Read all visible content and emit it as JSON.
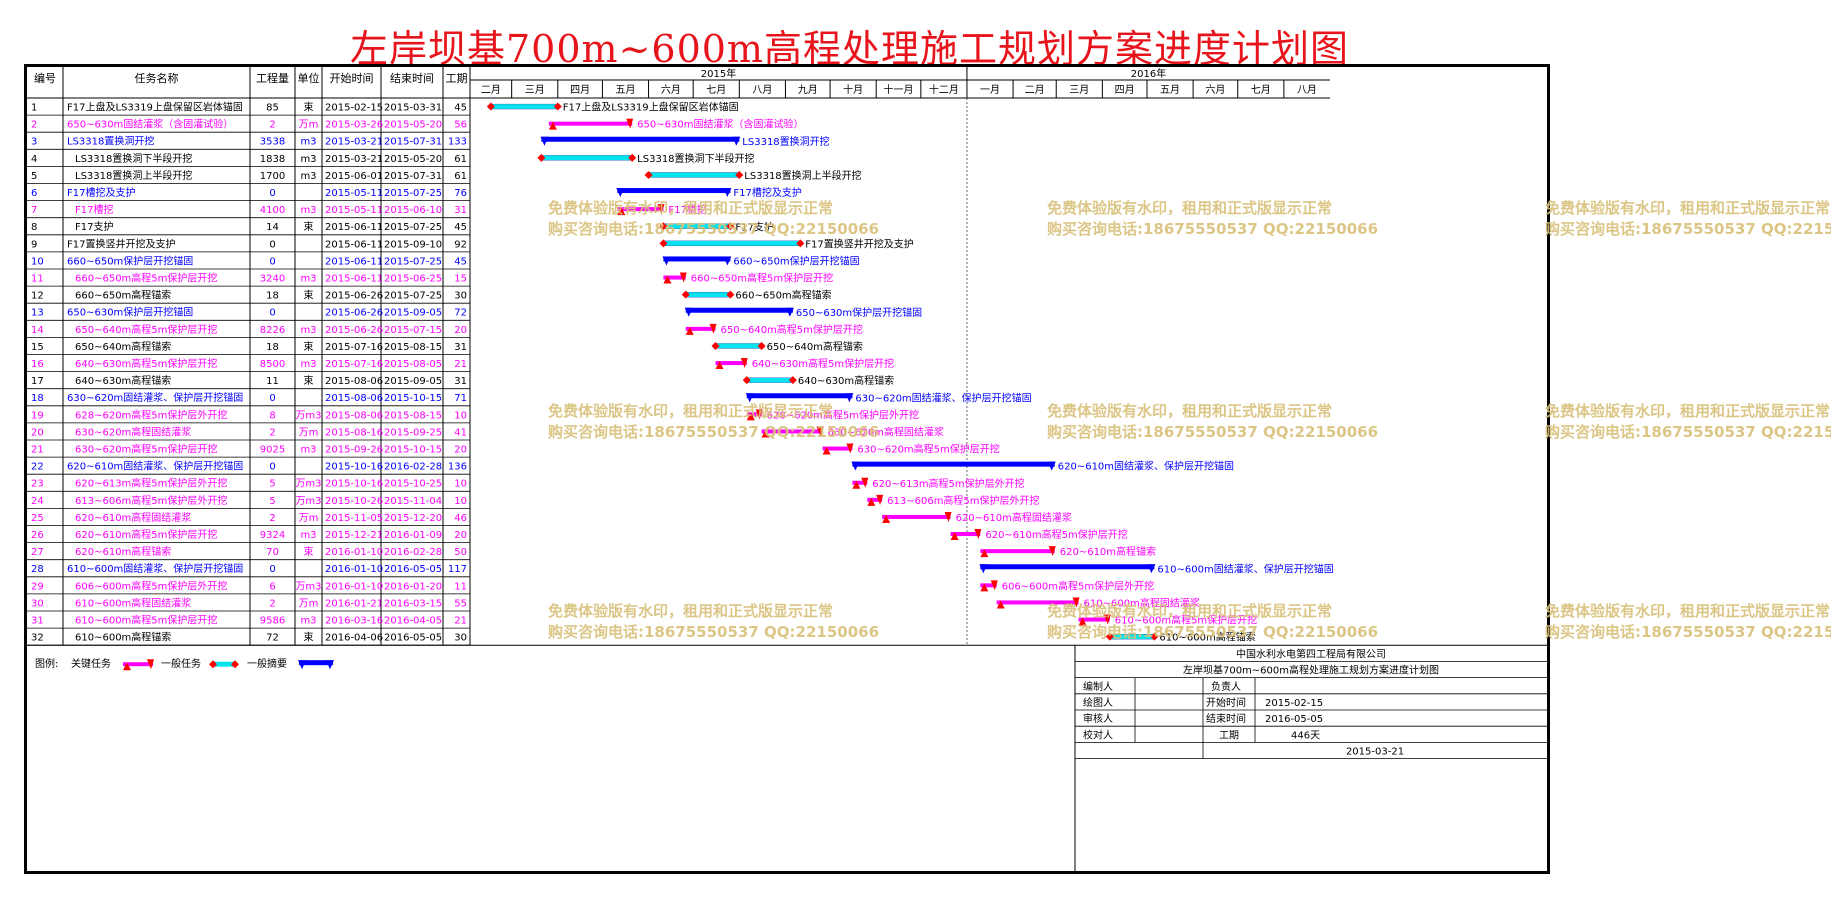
{
  "title": "左岸坝基700m~600m高程处理施工规划方案进度计划图",
  "headers": {
    "id": "编号",
    "name": "任务名称",
    "qty": "工程量",
    "unit": "单位",
    "start": "开始时间",
    "end": "结束时间",
    "dur": "工期"
  },
  "years": [
    "2015年",
    "2016年"
  ],
  "months_2015": [
    "二月",
    "三月",
    "四月",
    "五月",
    "六月",
    "七月",
    "八月",
    "九月",
    "十月",
    "十一月",
    "十二月"
  ],
  "months_2016": [
    "一月",
    "二月",
    "三月",
    "四月",
    "五月",
    "六月",
    "七月",
    "八月"
  ],
  "legend": {
    "label": "图例:",
    "critical": "关键任务",
    "normal": "一般任务",
    "summary": "一般摘要"
  },
  "watermark": {
    "line1": "免费体验版有水印，租用和正式版显示正常",
    "line2": "购买咨询电话:18675550537 QQ:22150066"
  },
  "titleblock": {
    "company": "中国水利水电第四工程局有限公司",
    "plan_title": "左岸坝基700m~600m高程处理施工规划方案进度计划图",
    "compiler": "编制人",
    "owner": "负责人",
    "drafter": "绘图人",
    "start_label": "开始时间",
    "start_value": "2015-02-15",
    "reviewer": "审核人",
    "end_label": "结束时间",
    "end_value": "2016-05-05",
    "checker": "校对人",
    "dur_label": "工期",
    "dur_value": "446天",
    "date": "2015-03-21"
  },
  "colors": {
    "critical": "#ff00ff",
    "normal": "#00e5ee",
    "summary": "#0000ff",
    "milestone": "#ff0000",
    "watermark": "#d9c07a",
    "title": "#e8141b"
  },
  "chart_data": {
    "type": "gantt",
    "x_start": "2015-02-01",
    "x_end": "2016-08-31",
    "tasks": [
      {
        "id": "1",
        "name": "F17上盘及LS3319上盘保留区岩体锚固",
        "qty": "85",
        "unit": "束",
        "start": "2015-02-15",
        "end": "2015-03-31",
        "dur": "45",
        "type": "normal",
        "indent": 0
      },
      {
        "id": "2",
        "name": "650~630m固结灌浆（含固灌试验）",
        "qty": "2",
        "unit": "万m",
        "start": "2015-03-26",
        "end": "2015-05-20",
        "dur": "56",
        "type": "critical",
        "indent": 0
      },
      {
        "id": "3",
        "name": "LS3318置换洞开挖",
        "qty": "3538",
        "unit": "m3",
        "start": "2015-03-21",
        "end": "2015-07-31",
        "dur": "133",
        "type": "summary",
        "indent": 0
      },
      {
        "id": "4",
        "name": "LS3318置换洞下半段开挖",
        "qty": "1838",
        "unit": "m3",
        "start": "2015-03-21",
        "end": "2015-05-20",
        "dur": "61",
        "type": "normal",
        "indent": 1
      },
      {
        "id": "5",
        "name": "LS3318置换洞上半段开挖",
        "qty": "1700",
        "unit": "m3",
        "start": "2015-06-01",
        "end": "2015-07-31",
        "dur": "61",
        "type": "normal",
        "indent": 1
      },
      {
        "id": "6",
        "name": "F17槽挖及支护",
        "qty": "0",
        "unit": "",
        "start": "2015-05-11",
        "end": "2015-07-25",
        "dur": "76",
        "type": "summary",
        "indent": 0
      },
      {
        "id": "7",
        "name": "F17槽挖",
        "qty": "4100",
        "unit": "m3",
        "start": "2015-05-11",
        "end": "2015-06-10",
        "dur": "31",
        "type": "critical",
        "indent": 1
      },
      {
        "id": "8",
        "name": "F17支护",
        "qty": "14",
        "unit": "束",
        "start": "2015-06-11",
        "end": "2015-07-25",
        "dur": "45",
        "type": "normal",
        "indent": 1
      },
      {
        "id": "9",
        "name": "F17置换竖井开挖及支护",
        "qty": "0",
        "unit": "",
        "start": "2015-06-11",
        "end": "2015-09-10",
        "dur": "92",
        "type": "normal",
        "indent": 0
      },
      {
        "id": "10",
        "name": "660~650m保护层开挖锚固",
        "qty": "0",
        "unit": "",
        "start": "2015-06-11",
        "end": "2015-07-25",
        "dur": "45",
        "type": "summary",
        "indent": 0
      },
      {
        "id": "11",
        "name": "660~650m高程5m保护层开挖",
        "qty": "3240",
        "unit": "m3",
        "start": "2015-06-11",
        "end": "2015-06-25",
        "dur": "15",
        "type": "critical",
        "indent": 1
      },
      {
        "id": "12",
        "name": "660~650m高程锚索",
        "qty": "18",
        "unit": "束",
        "start": "2015-06-26",
        "end": "2015-07-25",
        "dur": "30",
        "type": "normal",
        "indent": 1
      },
      {
        "id": "13",
        "name": "650~630m保护层开挖锚固",
        "qty": "0",
        "unit": "",
        "start": "2015-06-26",
        "end": "2015-09-05",
        "dur": "72",
        "type": "summary",
        "indent": 0
      },
      {
        "id": "14",
        "name": "650~640m高程5m保护层开挖",
        "qty": "8226",
        "unit": "m3",
        "start": "2015-06-26",
        "end": "2015-07-15",
        "dur": "20",
        "type": "critical",
        "indent": 1
      },
      {
        "id": "15",
        "name": "650~640m高程锚索",
        "qty": "18",
        "unit": "束",
        "start": "2015-07-16",
        "end": "2015-08-15",
        "dur": "31",
        "type": "normal",
        "indent": 1
      },
      {
        "id": "16",
        "name": "640~630m高程5m保护层开挖",
        "qty": "8500",
        "unit": "m3",
        "start": "2015-07-16",
        "end": "2015-08-05",
        "dur": "21",
        "type": "critical",
        "indent": 1
      },
      {
        "id": "17",
        "name": "640~630m高程锚索",
        "qty": "11",
        "unit": "束",
        "start": "2015-08-06",
        "end": "2015-09-05",
        "dur": "31",
        "type": "normal",
        "indent": 1
      },
      {
        "id": "18",
        "name": "630~620m固结灌浆、保护层开挖锚固",
        "qty": "0",
        "unit": "",
        "start": "2015-08-06",
        "end": "2015-10-15",
        "dur": "71",
        "type": "summary",
        "indent": 0
      },
      {
        "id": "19",
        "name": "628~620m高程5m保护层外开挖",
        "qty": "8",
        "unit": "万m3",
        "start": "2015-08-06",
        "end": "2015-08-15",
        "dur": "10",
        "type": "critical",
        "indent": 1
      },
      {
        "id": "20",
        "name": "630~620m高程固结灌浆",
        "qty": "2",
        "unit": "万m",
        "start": "2015-08-16",
        "end": "2015-09-25",
        "dur": "41",
        "type": "critical",
        "indent": 1
      },
      {
        "id": "21",
        "name": "630~620m高程5m保护层开挖",
        "qty": "9025",
        "unit": "m3",
        "start": "2015-09-26",
        "end": "2015-10-15",
        "dur": "20",
        "type": "critical",
        "indent": 1
      },
      {
        "id": "22",
        "name": "620~610m固结灌浆、保护层开挖锚固",
        "qty": "0",
        "unit": "",
        "start": "2015-10-16",
        "end": "2016-02-28",
        "dur": "136",
        "type": "summary",
        "indent": 0
      },
      {
        "id": "23",
        "name": "620~613m高程5m保护层外开挖",
        "qty": "5",
        "unit": "万m3",
        "start": "2015-10-16",
        "end": "2015-10-25",
        "dur": "10",
        "type": "critical",
        "indent": 1
      },
      {
        "id": "24",
        "name": "613~606m高程5m保护层外开挖",
        "qty": "5",
        "unit": "万m3",
        "start": "2015-10-26",
        "end": "2015-11-04",
        "dur": "10",
        "type": "critical",
        "indent": 1
      },
      {
        "id": "25",
        "name": "620~610m高程固结灌浆",
        "qty": "2",
        "unit": "万m",
        "start": "2015-11-05",
        "end": "2015-12-20",
        "dur": "46",
        "type": "critical",
        "indent": 1
      },
      {
        "id": "26",
        "name": "620~610m高程5m保护层开挖",
        "qty": "9324",
        "unit": "m3",
        "start": "2015-12-21",
        "end": "2016-01-09",
        "dur": "20",
        "type": "critical",
        "indent": 1
      },
      {
        "id": "27",
        "name": "620~610m高程锚索",
        "qty": "70",
        "unit": "束",
        "start": "2016-01-10",
        "end": "2016-02-28",
        "dur": "50",
        "type": "critical",
        "indent": 1
      },
      {
        "id": "28",
        "name": "610~600m固结灌浆、保护层开挖锚固",
        "qty": "0",
        "unit": "",
        "start": "2016-01-10",
        "end": "2016-05-05",
        "dur": "117",
        "type": "summary",
        "indent": 0
      },
      {
        "id": "29",
        "name": "606~600m高程5m保护层外开挖",
        "qty": "6",
        "unit": "万m3",
        "start": "2016-01-10",
        "end": "2016-01-20",
        "dur": "11",
        "type": "critical",
        "indent": 1
      },
      {
        "id": "30",
        "name": "610~600m高程固结灌浆",
        "qty": "2",
        "unit": "万m",
        "start": "2016-01-21",
        "end": "2016-03-15",
        "dur": "55",
        "type": "critical",
        "indent": 1
      },
      {
        "id": "31",
        "name": "610~600m高程5m保护层开挖",
        "qty": "9586",
        "unit": "m3",
        "start": "2016-03-16",
        "end": "2016-04-05",
        "dur": "21",
        "type": "critical",
        "indent": 1
      },
      {
        "id": "32",
        "name": "610~600m高程锚索",
        "qty": "72",
        "unit": "束",
        "start": "2016-04-06",
        "end": "2016-05-05",
        "dur": "30",
        "type": "normal",
        "indent": 1
      }
    ]
  }
}
